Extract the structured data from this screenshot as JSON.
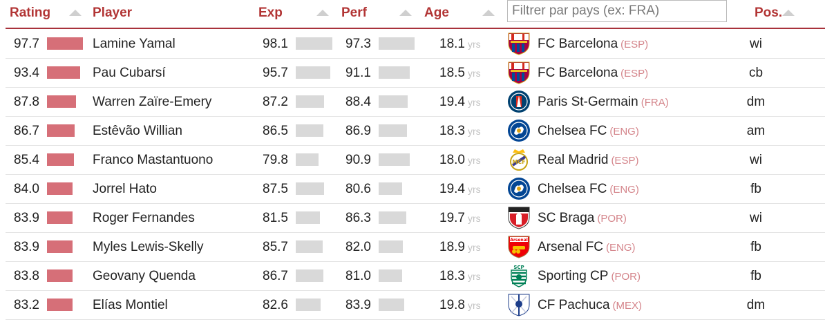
{
  "header": {
    "rating": "Rating",
    "player": "Player",
    "exp": "Exp",
    "perf": "Perf",
    "age": "Age",
    "pos": "Pos.",
    "filter_placeholder": "Filtrer par pays (ex: FRA)",
    "filter_value": ""
  },
  "age_unit": "yrs",
  "rows": [
    {
      "rating": "97.7",
      "player": "Lamine Yamal",
      "exp": "98.1",
      "perf": "97.3",
      "age": "18.1",
      "club": "FC Barcelona",
      "country": "(ESP)",
      "pos": "wi",
      "logo": "fc-barcelona-crest-icon"
    },
    {
      "rating": "93.4",
      "player": "Pau Cubarsí",
      "exp": "95.7",
      "perf": "91.1",
      "age": "18.5",
      "club": "FC Barcelona",
      "country": "(ESP)",
      "pos": "cb",
      "logo": "fc-barcelona-crest-icon"
    },
    {
      "rating": "87.8",
      "player": "Warren Zaïre-Emery",
      "exp": "87.2",
      "perf": "88.4",
      "age": "19.4",
      "club": "Paris St-Germain",
      "country": "(FRA)",
      "pos": "dm",
      "logo": "psg-crest-icon"
    },
    {
      "rating": "86.7",
      "player": "Estêvão Willian",
      "exp": "86.5",
      "perf": "86.9",
      "age": "18.3",
      "club": "Chelsea FC",
      "country": "(ENG)",
      "pos": "am",
      "logo": "chelsea-crest-icon"
    },
    {
      "rating": "85.4",
      "player": "Franco Mastantuono",
      "exp": "79.8",
      "perf": "90.9",
      "age": "18.0",
      "club": "Real Madrid",
      "country": "(ESP)",
      "pos": "wi",
      "logo": "real-madrid-crest-icon"
    },
    {
      "rating": "84.0",
      "player": "Jorrel Hato",
      "exp": "87.5",
      "perf": "80.6",
      "age": "19.4",
      "club": "Chelsea FC",
      "country": "(ENG)",
      "pos": "fb",
      "logo": "chelsea-crest-icon"
    },
    {
      "rating": "83.9",
      "player": "Roger Fernandes",
      "exp": "81.5",
      "perf": "86.3",
      "age": "19.7",
      "club": "SC Braga",
      "country": "(POR)",
      "pos": "wi",
      "logo": "sc-braga-crest-icon"
    },
    {
      "rating": "83.9",
      "player": "Myles Lewis-Skelly",
      "exp": "85.7",
      "perf": "82.0",
      "age": "18.9",
      "club": "Arsenal FC",
      "country": "(ENG)",
      "pos": "fb",
      "logo": "arsenal-crest-icon"
    },
    {
      "rating": "83.8",
      "player": "Geovany Quenda",
      "exp": "86.7",
      "perf": "81.0",
      "age": "18.3",
      "club": "Sporting CP",
      "country": "(POR)",
      "pos": "fb",
      "logo": "sporting-cp-crest-icon"
    },
    {
      "rating": "83.2",
      "player": "Elías Montiel",
      "exp": "82.6",
      "perf": "83.9",
      "age": "19.8",
      "club": "CF Pachuca",
      "country": "(MEX)",
      "pos": "dm",
      "logo": "pachuca-crest-icon"
    }
  ],
  "colors": {
    "accent": "#b23535",
    "rating_bar": "#d66f78",
    "neutral_bar": "#d9d9d9",
    "country": "#d4848a"
  }
}
